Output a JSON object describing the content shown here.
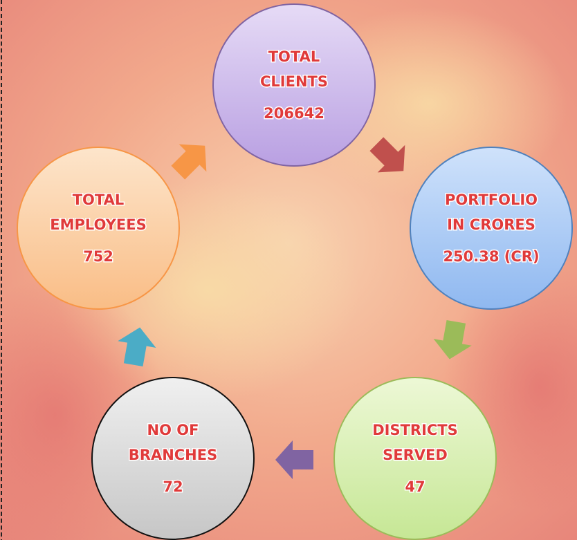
{
  "nodes": [
    {
      "lines": [
        "TOTAL",
        "CLIENTS"
      ],
      "value": 206642
    },
    {
      "lines": [
        "PORTFOLIO",
        "IN CRORES"
      ],
      "value": "250.38 (CR)"
    },
    {
      "lines": [
        "DISTRICTS",
        "SERVED"
      ],
      "value": 47
    },
    {
      "lines": [
        "NO OF",
        "BRANCHES"
      ],
      "value": 72
    },
    {
      "lines": [
        "TOTAL",
        "EMPLOYEES"
      ],
      "value": 752
    }
  ]
}
